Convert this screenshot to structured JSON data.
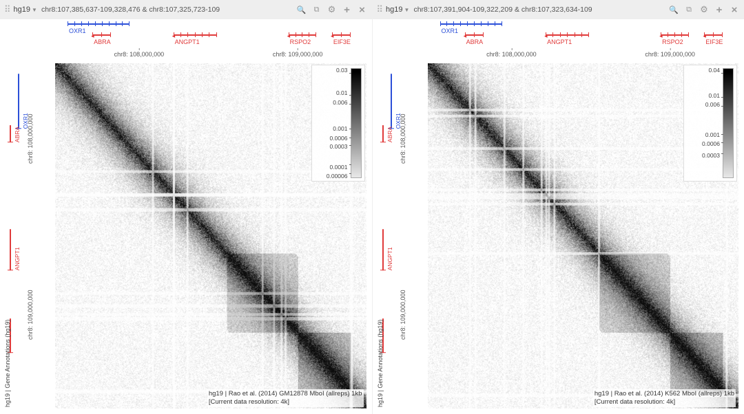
{
  "panels": [
    {
      "genome": "hg19",
      "coords": "chr8:107,385,637-109,328,476 & chr8:107,325,723-109",
      "axis_top": [
        {
          "pos_pct": 27,
          "label": "chr8: 108,000,000"
        },
        {
          "pos_pct": 78,
          "label": "chr8: 109,000,000"
        }
      ],
      "axis_left": [
        {
          "pos_pct": 27,
          "label": "chr8: 108,000,000"
        },
        {
          "pos_pct": 78,
          "label": "chr8: 109,000,000"
        }
      ],
      "genes_top": [
        {
          "name": "OXR1",
          "color": "blue",
          "left_pct": 4,
          "width_pct": 20,
          "row": 0
        },
        {
          "name": "ABRA",
          "color": "red",
          "left_pct": 12,
          "width_pct": 6,
          "row": 1
        },
        {
          "name": "ANGPT1",
          "color": "red",
          "left_pct": 38,
          "width_pct": 14,
          "row": 1
        },
        {
          "name": "RSPO2",
          "color": "red",
          "left_pct": 75,
          "width_pct": 9,
          "row": 1
        },
        {
          "name": "EIF3E",
          "color": "red",
          "left_pct": 89,
          "width_pct": 6,
          "row": 1
        }
      ],
      "genes_left": [
        {
          "name": "OXR1",
          "color": "blue",
          "top_pct": 3,
          "height_pct": 16
        },
        {
          "name": "ABRA",
          "color": "red",
          "top_pct": 18,
          "height_pct": 5
        },
        {
          "name": "ANGPT1",
          "color": "red",
          "top_pct": 48,
          "height_pct": 12
        },
        {
          "name": "",
          "color": "red",
          "top_pct": 74,
          "height_pct": 10
        }
      ],
      "colorbar_ticks": [
        {
          "pos_pct": 4,
          "label": "0.03"
        },
        {
          "pos_pct": 24,
          "label": "0.01"
        },
        {
          "pos_pct": 32,
          "label": "0.006"
        },
        {
          "pos_pct": 55,
          "label": "0.001"
        },
        {
          "pos_pct": 63,
          "label": "0.0006"
        },
        {
          "pos_pct": 70,
          "label": "0.0003"
        },
        {
          "pos_pct": 88,
          "label": "0.0001"
        },
        {
          "pos_pct": 96,
          "label": "0.00006"
        }
      ],
      "caption_line1": "hg19 | Rao et al. (2014) GM12878 MboI (allreps) 1kb",
      "caption_line2": "[Current data resolution: 4k]",
      "side_label": "hg19 | Gene Annotations (hg19)",
      "heatmap_seed": 17
    },
    {
      "genome": "hg19",
      "coords": "chr8:107,391,904-109,322,209 & chr8:107,323,634-109",
      "axis_top": [
        {
          "pos_pct": 27,
          "label": "chr8: 108,000,000"
        },
        {
          "pos_pct": 78,
          "label": "chr8: 109,000,000"
        }
      ],
      "axis_left": [
        {
          "pos_pct": 27,
          "label": "chr8: 108,000,000"
        },
        {
          "pos_pct": 78,
          "label": "chr8: 109,000,000"
        }
      ],
      "genes_top": [
        {
          "name": "OXR1",
          "color": "blue",
          "left_pct": 4,
          "width_pct": 20,
          "row": 0
        },
        {
          "name": "ABRA",
          "color": "red",
          "left_pct": 12,
          "width_pct": 6,
          "row": 1
        },
        {
          "name": "ANGPT1",
          "color": "red",
          "left_pct": 38,
          "width_pct": 14,
          "row": 1
        },
        {
          "name": "RSPO2",
          "color": "red",
          "left_pct": 75,
          "width_pct": 9,
          "row": 1
        },
        {
          "name": "EIF3E",
          "color": "red",
          "left_pct": 89,
          "width_pct": 6,
          "row": 1
        }
      ],
      "genes_left": [
        {
          "name": "OXR1",
          "color": "blue",
          "top_pct": 3,
          "height_pct": 16
        },
        {
          "name": "ABRA",
          "color": "red",
          "top_pct": 18,
          "height_pct": 5
        },
        {
          "name": "ANGPT1",
          "color": "red",
          "top_pct": 48,
          "height_pct": 12
        },
        {
          "name": "",
          "color": "red",
          "top_pct": 74,
          "height_pct": 10
        }
      ],
      "colorbar_ticks": [
        {
          "pos_pct": 4,
          "label": "0.04"
        },
        {
          "pos_pct": 26,
          "label": "0.01"
        },
        {
          "pos_pct": 34,
          "label": "0.006"
        },
        {
          "pos_pct": 60,
          "label": "0.001"
        },
        {
          "pos_pct": 68,
          "label": "0.0006"
        },
        {
          "pos_pct": 78,
          "label": "0.0003"
        }
      ],
      "caption_line1": "hg19 | Rao et al. (2014) K562 MboI (allreps) 1kb",
      "caption_line2": "[Current data resolution: 4k]",
      "side_label": "hg19 | Gene Annotations (hg19)",
      "heatmap_seed": 31
    }
  ],
  "colors": {
    "gene_blue": "#2b4fd8",
    "gene_red": "#e03a3a",
    "toolbar_bg": "#eeeeee",
    "icon": "#999999",
    "text": "#555555"
  }
}
